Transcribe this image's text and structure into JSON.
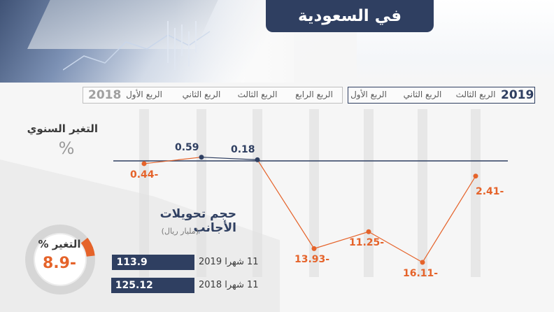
{
  "header": {
    "title": "في السعودية"
  },
  "chart_data": [
    {
      "type": "line",
      "title": "التغير السنوي",
      "ylabel": "%",
      "groups": [
        {
          "year": "2018",
          "quarters": [
            "الربع الأول",
            "الربع الثاني",
            "الربع الثالث",
            "الربع الرابع"
          ]
        },
        {
          "year": "2019",
          "quarters": [
            "الربع الأول",
            "الربع الثاني",
            "الربع الثالث"
          ]
        }
      ],
      "series": [
        {
          "values": [
            -0.44,
            0.59,
            0.18,
            -13.93,
            -11.25,
            -16.11,
            -2.41
          ],
          "labels": [
            "0.44-",
            "0.59",
            "0.18",
            "13.93-",
            "11.25-",
            "16.11-",
            "2.41-"
          ]
        }
      ],
      "ylim": [
        -18,
        2
      ],
      "colors": {
        "positive": "#2f3f61",
        "negative": "#e5632a"
      }
    },
    {
      "type": "bar",
      "title": "حجم تحويلات الأجانب",
      "unit": "(مليار ريال)",
      "categories": [
        "11 شهرا 2019",
        "11 شهرا 2018"
      ],
      "values": [
        113.9,
        125.12
      ],
      "value_labels": [
        "113.9",
        "125.12"
      ],
      "change": {
        "title": "التغير %",
        "value": -8.9,
        "label": "8.9-"
      }
    }
  ]
}
